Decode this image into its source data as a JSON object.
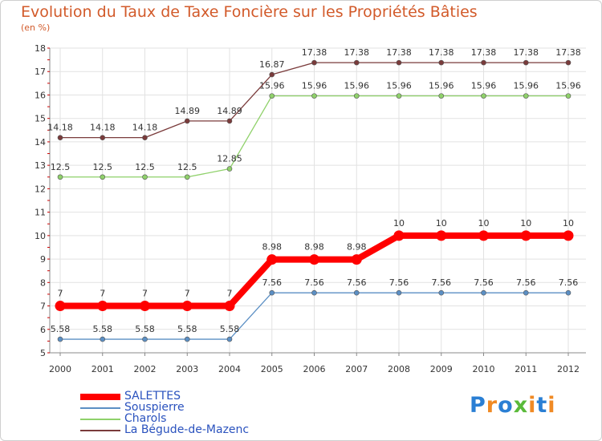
{
  "chart_data": {
    "type": "line",
    "title": "Evolution du Taux de Taxe Foncière sur les Propriétés Bâties",
    "ylabel": "(en %)",
    "xlabel": "",
    "ylim": [
      5,
      18
    ],
    "yticks": [
      "5",
      "6",
      "7",
      "8",
      "9",
      "10",
      "11",
      "12",
      "13",
      "14",
      "15",
      "16",
      "17",
      "18"
    ],
    "categories": [
      "2000",
      "2001",
      "2002",
      "2003",
      "2004",
      "2005",
      "2006",
      "2007",
      "2008",
      "2009",
      "2010",
      "2011",
      "2012"
    ],
    "series": [
      {
        "name": "SALETTES",
        "color": "#ff0000",
        "labels": [
          "7",
          "7",
          "7",
          "7",
          "7",
          "8.98",
          "8.98",
          "8.98",
          "10",
          "10",
          "10",
          "10",
          "10"
        ],
        "values": [
          7,
          7,
          7,
          7,
          7,
          8.98,
          8.98,
          8.98,
          10,
          10,
          10,
          10,
          10
        ]
      },
      {
        "name": "Souspierre",
        "color": "#5b8fc4",
        "labels": [
          "5.58",
          "5.58",
          "5.58",
          "5.58",
          "5.58",
          "7.56",
          "7.56",
          "7.56",
          "7.56",
          "7.56",
          "7.56",
          "7.56",
          "7.56"
        ],
        "values": [
          5.58,
          5.58,
          5.58,
          5.58,
          5.58,
          7.56,
          7.56,
          7.56,
          7.56,
          7.56,
          7.56,
          7.56,
          7.56
        ]
      },
      {
        "name": "Charols",
        "color": "#8fd16a",
        "labels": [
          "12.5",
          "12.5",
          "12.5",
          "12.5",
          "12.85",
          "15.96",
          "15.96",
          "15.96",
          "15.96",
          "15.96",
          "15.96",
          "15.96",
          "15.96"
        ],
        "values": [
          12.5,
          12.5,
          12.5,
          12.5,
          12.85,
          15.96,
          15.96,
          15.96,
          15.96,
          15.96,
          15.96,
          15.96,
          15.96
        ]
      },
      {
        "name": "La Bégude-de-Mazenc",
        "color": "#7a3b3b",
        "labels": [
          "14.18",
          "14.18",
          "14.18",
          "14.89",
          "14.89",
          "16.87",
          "17.38",
          "17.38",
          "17.38",
          "17.38",
          "17.38",
          "17.38",
          "17.38"
        ],
        "values": [
          14.18,
          14.18,
          14.18,
          14.89,
          14.89,
          16.87,
          17.38,
          17.38,
          17.38,
          17.38,
          17.38,
          17.38,
          17.38
        ]
      }
    ]
  },
  "logo": {
    "text": "Proxiti",
    "letters": [
      "P",
      "r",
      "o",
      "x",
      "i",
      "t",
      "i"
    ],
    "colors": [
      "#2a7fd4",
      "#f08a24",
      "#2a7fd4",
      "#5aba3a",
      "#f08a24",
      "#2a7fd4",
      "#f08a24"
    ]
  }
}
